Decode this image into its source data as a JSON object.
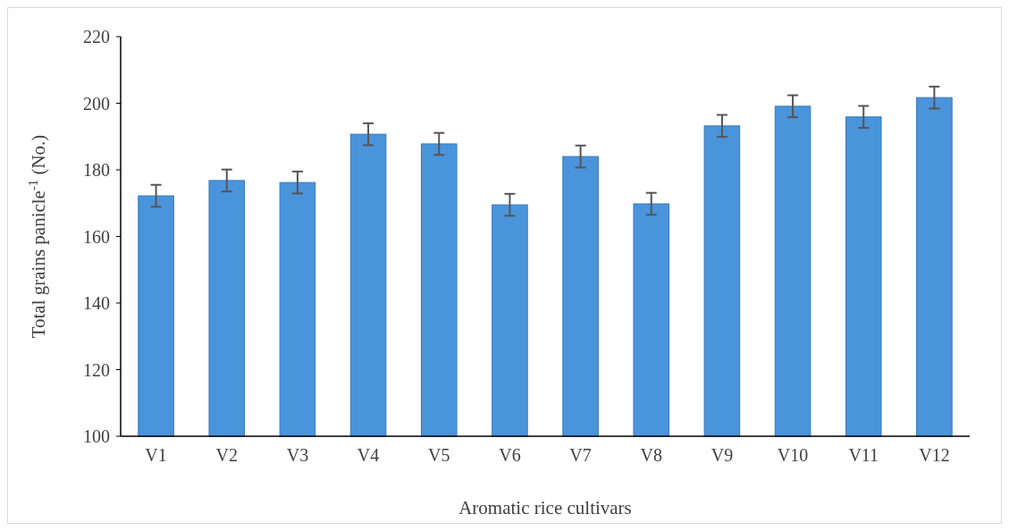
{
  "chart_data": {
    "type": "bar",
    "xlabel": "Aromatic rice cultivars",
    "ylabel": "Total grains panicle$^{-1}$ (No.)",
    "categories": [
      "V1",
      "V2",
      "V3",
      "V4",
      "V5",
      "V6",
      "V7",
      "V8",
      "V9",
      "V10",
      "V11",
      "V12"
    ],
    "values": [
      172.2,
      176.8,
      176.2,
      190.7,
      187.8,
      169.5,
      184.0,
      169.8,
      193.2,
      199.1,
      195.9,
      201.7
    ],
    "errors": [
      3.3,
      3.3,
      3.3,
      3.3,
      3.3,
      3.3,
      3.3,
      3.3,
      3.3,
      3.3,
      3.3,
      3.3
    ],
    "color": "#4a94dc",
    "ylim": [
      100,
      220
    ],
    "yticks": [
      100,
      120,
      140,
      160,
      180,
      200,
      220
    ],
    "grid": false
  }
}
